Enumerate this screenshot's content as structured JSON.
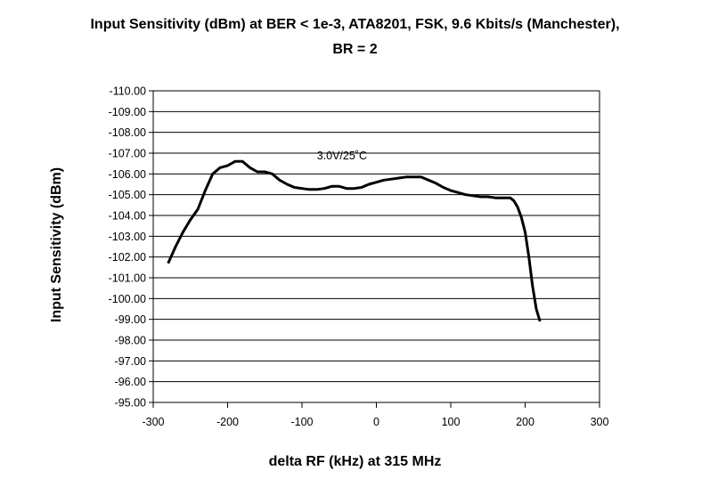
{
  "chart_data": {
    "type": "line",
    "title_line1": "Input Sensitivity (dBm) at BER < 1e-3, ATA8201, FSK, 9.6 Kbits/s (Manchester),",
    "title_line2": "BR = 2",
    "xlabel": "delta RF (kHz) at 315 MHz",
    "ylabel": "Input Sensitivity (dBm)",
    "xlim": [
      -300,
      300
    ],
    "ylim": [
      -95,
      -110
    ],
    "y_inverted": true,
    "x_ticks": [
      -300,
      -200,
      -100,
      0,
      100,
      200,
      300
    ],
    "x_tick_labels": [
      "-300",
      "-200",
      "-100",
      "0",
      "100",
      "200",
      "300"
    ],
    "y_ticks": [
      -110,
      -109,
      -108,
      -107,
      -106,
      -105,
      -104,
      -103,
      -102,
      -101,
      -100,
      -99,
      -98,
      -97,
      -96,
      -95
    ],
    "y_tick_labels": [
      "-110.00",
      "-109.00",
      "-108.00",
      "-107.00",
      "-106.00",
      "-105.00",
      "-104.00",
      "-103.00",
      "-102.00",
      "-101.00",
      "-100.00",
      "-99.00",
      "-98.00",
      "-97.00",
      "-96.00",
      "-95.00"
    ],
    "grid": "horizontal",
    "series": [
      {
        "name": "3.0V/25°C",
        "color": "#000000",
        "x": [
          -280,
          -270,
          -260,
          -250,
          -240,
          -230,
          -220,
          -210,
          -200,
          -190,
          -180,
          -170,
          -160,
          -150,
          -140,
          -130,
          -120,
          -110,
          -100,
          -90,
          -80,
          -70,
          -60,
          -50,
          -40,
          -30,
          -20,
          -10,
          0,
          10,
          20,
          30,
          40,
          50,
          60,
          70,
          80,
          90,
          100,
          110,
          120,
          130,
          140,
          150,
          160,
          170,
          180,
          185,
          190,
          195,
          200,
          205,
          210,
          215,
          220
        ],
        "y": [
          -101.7,
          -102.5,
          -103.2,
          -103.8,
          -104.3,
          -105.2,
          -106.0,
          -106.3,
          -106.4,
          -106.6,
          -106.6,
          -106.3,
          -106.1,
          -106.1,
          -106.0,
          -105.7,
          -105.5,
          -105.35,
          -105.3,
          -105.25,
          -105.25,
          -105.3,
          -105.4,
          -105.4,
          -105.3,
          -105.3,
          -105.35,
          -105.5,
          -105.6,
          -105.7,
          -105.75,
          -105.8,
          -105.85,
          -105.85,
          -105.85,
          -105.7,
          -105.55,
          -105.35,
          -105.2,
          -105.1,
          -105.0,
          -104.95,
          -104.9,
          -104.9,
          -104.85,
          -104.85,
          -104.85,
          -104.7,
          -104.4,
          -103.9,
          -103.2,
          -102.0,
          -100.6,
          -99.5,
          -98.9
        ]
      }
    ],
    "annotation": "3.0V/25˚C"
  }
}
